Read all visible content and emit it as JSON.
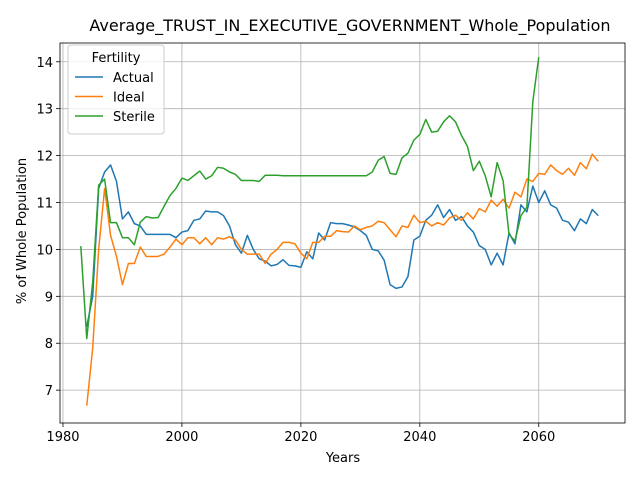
{
  "chart_data": {
    "type": "line",
    "title": "Average_TRUST_IN_EXECUTIVE_GOVERNMENT_Whole_Population",
    "xlabel": "Years",
    "ylabel": "% of Whole Population",
    "xlim": [
      1979.5,
      2074.5
    ],
    "ylim": [
      6.3,
      14.4
    ],
    "xticks": [
      1980,
      2000,
      2020,
      2040,
      2060
    ],
    "yticks": [
      7,
      8,
      9,
      10,
      11,
      12,
      13,
      14
    ],
    "grid": true,
    "legend": {
      "title": "Fertility",
      "placement": "top-left",
      "entries": [
        "Actual",
        "Ideal",
        "Sterile"
      ]
    },
    "series": [
      {
        "name": "Actual",
        "color": "#1f77b4",
        "points": [
          [
            1984,
            8.35
          ],
          [
            1985,
            9.0
          ],
          [
            1986,
            11.3
          ],
          [
            1987,
            11.65
          ],
          [
            1988,
            11.8
          ],
          [
            1989,
            11.45
          ],
          [
            1990,
            10.65
          ],
          [
            1991,
            10.8
          ],
          [
            1992,
            10.55
          ],
          [
            1993,
            10.5
          ],
          [
            1994,
            10.32
          ],
          [
            1995,
            10.32
          ],
          [
            1996,
            10.32
          ],
          [
            1997,
            10.32
          ],
          [
            1998,
            10.32
          ],
          [
            1999,
            10.25
          ],
          [
            2000,
            10.37
          ],
          [
            2001,
            10.4
          ],
          [
            2002,
            10.62
          ],
          [
            2003,
            10.65
          ],
          [
            2004,
            10.82
          ],
          [
            2005,
            10.8
          ],
          [
            2006,
            10.8
          ],
          [
            2007,
            10.72
          ],
          [
            2008,
            10.5
          ],
          [
            2009,
            10.1
          ],
          [
            2010,
            9.92
          ],
          [
            2011,
            10.3
          ],
          [
            2012,
            10.0
          ],
          [
            2013,
            9.8
          ],
          [
            2014,
            9.75
          ],
          [
            2015,
            9.65
          ],
          [
            2016,
            9.68
          ],
          [
            2017,
            9.78
          ],
          [
            2018,
            9.66
          ],
          [
            2019,
            9.65
          ],
          [
            2020,
            9.62
          ],
          [
            2021,
            9.95
          ],
          [
            2022,
            9.8
          ],
          [
            2023,
            10.35
          ],
          [
            2024,
            10.2
          ],
          [
            2025,
            10.57
          ],
          [
            2026,
            10.55
          ],
          [
            2027,
            10.55
          ],
          [
            2028,
            10.52
          ],
          [
            2029,
            10.48
          ],
          [
            2030,
            10.4
          ],
          [
            2031,
            10.3
          ],
          [
            2032,
            10.0
          ],
          [
            2033,
            9.97
          ],
          [
            2034,
            9.77
          ],
          [
            2035,
            9.25
          ],
          [
            2036,
            9.17
          ],
          [
            2037,
            9.2
          ],
          [
            2038,
            9.42
          ],
          [
            2039,
            10.2
          ],
          [
            2040,
            10.28
          ],
          [
            2041,
            10.62
          ],
          [
            2042,
            10.73
          ],
          [
            2043,
            10.95
          ],
          [
            2044,
            10.68
          ],
          [
            2045,
            10.85
          ],
          [
            2046,
            10.62
          ],
          [
            2047,
            10.7
          ],
          [
            2048,
            10.5
          ],
          [
            2049,
            10.37
          ],
          [
            2050,
            10.08
          ],
          [
            2051,
            10.0
          ],
          [
            2052,
            9.67
          ],
          [
            2053,
            9.92
          ],
          [
            2054,
            9.67
          ],
          [
            2055,
            10.35
          ],
          [
            2056,
            10.12
          ],
          [
            2057,
            10.95
          ],
          [
            2058,
            10.8
          ],
          [
            2059,
            11.35
          ],
          [
            2060,
            11.0
          ],
          [
            2061,
            11.25
          ],
          [
            2062,
            10.95
          ],
          [
            2063,
            10.88
          ],
          [
            2064,
            10.62
          ],
          [
            2065,
            10.58
          ],
          [
            2066,
            10.4
          ],
          [
            2067,
            10.65
          ],
          [
            2068,
            10.55
          ],
          [
            2069,
            10.85
          ],
          [
            2070,
            10.72
          ]
        ]
      },
      {
        "name": "Ideal",
        "color": "#ff7f0e",
        "points": [
          [
            1984,
            6.67
          ],
          [
            1985,
            7.9
          ],
          [
            1986,
            10.0
          ],
          [
            1987,
            11.3
          ],
          [
            1988,
            10.3
          ],
          [
            1989,
            9.85
          ],
          [
            1990,
            9.25
          ],
          [
            1991,
            9.7
          ],
          [
            1992,
            9.7
          ],
          [
            1993,
            10.05
          ],
          [
            1994,
            9.85
          ],
          [
            1995,
            9.85
          ],
          [
            1996,
            9.85
          ],
          [
            1997,
            9.9
          ],
          [
            1998,
            10.05
          ],
          [
            1999,
            10.22
          ],
          [
            2000,
            10.1
          ],
          [
            2001,
            10.25
          ],
          [
            2002,
            10.25
          ],
          [
            2003,
            10.12
          ],
          [
            2004,
            10.25
          ],
          [
            2005,
            10.1
          ],
          [
            2006,
            10.25
          ],
          [
            2007,
            10.22
          ],
          [
            2008,
            10.27
          ],
          [
            2009,
            10.2
          ],
          [
            2010,
            10.0
          ],
          [
            2011,
            9.9
          ],
          [
            2012,
            9.9
          ],
          [
            2013,
            9.9
          ],
          [
            2014,
            9.7
          ],
          [
            2015,
            9.9
          ],
          [
            2016,
            10.0
          ],
          [
            2017,
            10.15
          ],
          [
            2018,
            10.15
          ],
          [
            2019,
            10.12
          ],
          [
            2020,
            9.92
          ],
          [
            2021,
            9.8
          ],
          [
            2022,
            10.15
          ],
          [
            2023,
            10.15
          ],
          [
            2024,
            10.28
          ],
          [
            2025,
            10.28
          ],
          [
            2026,
            10.4
          ],
          [
            2027,
            10.38
          ],
          [
            2028,
            10.37
          ],
          [
            2029,
            10.5
          ],
          [
            2030,
            10.42
          ],
          [
            2031,
            10.47
          ],
          [
            2032,
            10.5
          ],
          [
            2033,
            10.6
          ],
          [
            2034,
            10.57
          ],
          [
            2035,
            10.42
          ],
          [
            2036,
            10.27
          ],
          [
            2037,
            10.5
          ],
          [
            2038,
            10.47
          ],
          [
            2039,
            10.73
          ],
          [
            2040,
            10.57
          ],
          [
            2041,
            10.6
          ],
          [
            2042,
            10.5
          ],
          [
            2043,
            10.57
          ],
          [
            2044,
            10.52
          ],
          [
            2045,
            10.67
          ],
          [
            2046,
            10.73
          ],
          [
            2047,
            10.62
          ],
          [
            2048,
            10.78
          ],
          [
            2049,
            10.65
          ],
          [
            2050,
            10.87
          ],
          [
            2051,
            10.8
          ],
          [
            2052,
            11.05
          ],
          [
            2053,
            10.92
          ],
          [
            2054,
            11.07
          ],
          [
            2055,
            10.88
          ],
          [
            2056,
            11.22
          ],
          [
            2057,
            11.12
          ],
          [
            2058,
            11.5
          ],
          [
            2059,
            11.45
          ],
          [
            2060,
            11.62
          ],
          [
            2061,
            11.6
          ],
          [
            2062,
            11.8
          ],
          [
            2063,
            11.68
          ],
          [
            2064,
            11.6
          ],
          [
            2065,
            11.73
          ],
          [
            2066,
            11.58
          ],
          [
            2067,
            11.85
          ],
          [
            2068,
            11.72
          ],
          [
            2069,
            12.03
          ],
          [
            2070,
            11.88
          ]
        ]
      },
      {
        "name": "Sterile",
        "color": "#2ca02c",
        "points": [
          [
            1983,
            10.07
          ],
          [
            1984,
            8.1
          ],
          [
            1985,
            9.3
          ],
          [
            1986,
            11.37
          ],
          [
            1987,
            11.5
          ],
          [
            1988,
            10.57
          ],
          [
            1989,
            10.57
          ],
          [
            1990,
            10.25
          ],
          [
            1991,
            10.25
          ],
          [
            1992,
            10.1
          ],
          [
            1993,
            10.58
          ],
          [
            1994,
            10.7
          ],
          [
            1995,
            10.67
          ],
          [
            1996,
            10.68
          ],
          [
            1997,
            10.92
          ],
          [
            1998,
            11.15
          ],
          [
            1999,
            11.3
          ],
          [
            2000,
            11.52
          ],
          [
            2001,
            11.47
          ],
          [
            2002,
            11.57
          ],
          [
            2003,
            11.67
          ],
          [
            2004,
            11.5
          ],
          [
            2005,
            11.57
          ],
          [
            2006,
            11.75
          ],
          [
            2007,
            11.73
          ],
          [
            2008,
            11.65
          ],
          [
            2009,
            11.6
          ],
          [
            2010,
            11.47
          ],
          [
            2011,
            11.47
          ],
          [
            2012,
            11.47
          ],
          [
            2013,
            11.45
          ],
          [
            2014,
            11.58
          ],
          [
            2015,
            11.58
          ],
          [
            2016,
            11.58
          ],
          [
            2017,
            11.57
          ],
          [
            2018,
            11.57
          ],
          [
            2019,
            11.57
          ],
          [
            2020,
            11.57
          ],
          [
            2021,
            11.57
          ],
          [
            2022,
            11.57
          ],
          [
            2023,
            11.57
          ],
          [
            2024,
            11.57
          ],
          [
            2025,
            11.57
          ],
          [
            2026,
            11.57
          ],
          [
            2027,
            11.57
          ],
          [
            2028,
            11.57
          ],
          [
            2029,
            11.57
          ],
          [
            2030,
            11.57
          ],
          [
            2031,
            11.57
          ],
          [
            2032,
            11.65
          ],
          [
            2033,
            11.9
          ],
          [
            2034,
            11.98
          ],
          [
            2035,
            11.62
          ],
          [
            2036,
            11.6
          ],
          [
            2037,
            11.95
          ],
          [
            2038,
            12.05
          ],
          [
            2039,
            12.33
          ],
          [
            2040,
            12.45
          ],
          [
            2041,
            12.77
          ],
          [
            2042,
            12.5
          ],
          [
            2043,
            12.52
          ],
          [
            2044,
            12.72
          ],
          [
            2045,
            12.85
          ],
          [
            2046,
            12.72
          ],
          [
            2047,
            12.43
          ],
          [
            2048,
            12.2
          ],
          [
            2049,
            11.68
          ],
          [
            2050,
            11.88
          ],
          [
            2051,
            11.57
          ],
          [
            2052,
            11.12
          ],
          [
            2053,
            11.85
          ],
          [
            2054,
            11.47
          ],
          [
            2055,
            10.32
          ],
          [
            2056,
            10.18
          ],
          [
            2057,
            10.72
          ],
          [
            2058,
            10.9
          ],
          [
            2059,
            13.15
          ],
          [
            2060,
            14.1
          ]
        ]
      }
    ]
  }
}
